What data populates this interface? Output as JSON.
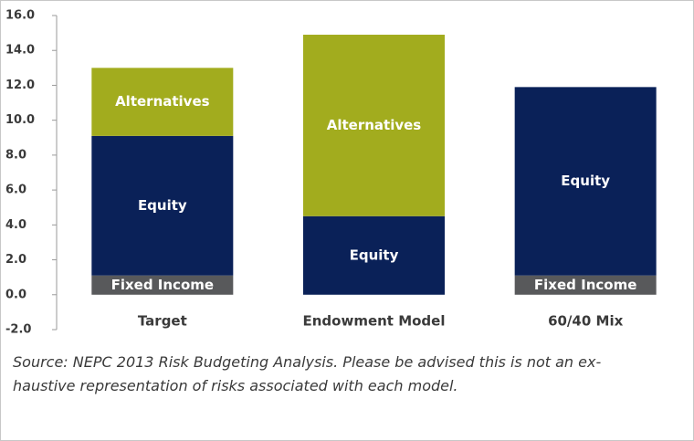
{
  "chart_data": {
    "type": "stacked_bar",
    "categories": [
      "Target",
      "Endowment Model",
      "60/40 Mix"
    ],
    "series": [
      {
        "name": "Fixed Income",
        "color": "#58595b",
        "values": [
          1.1,
          0,
          1.1
        ]
      },
      {
        "name": "Equity",
        "color": "#0a2158",
        "values": [
          8.0,
          4.5,
          10.8
        ]
      },
      {
        "name": "Alternatives",
        "color": "#a2ac1e",
        "values": [
          3.9,
          10.4,
          0
        ]
      }
    ],
    "ylim": [
      -2.0,
      16.0
    ],
    "yticks": [
      {
        "value": -2,
        "label": "-2.0"
      },
      {
        "value": 0,
        "label": "0.0"
      },
      {
        "value": 2,
        "label": "2.0"
      },
      {
        "value": 4,
        "label": "4.0"
      },
      {
        "value": 6,
        "label": "6.0"
      },
      {
        "value": 8,
        "label": "8.0"
      },
      {
        "value": 10,
        "label": "10.0"
      },
      {
        "value": 12,
        "label": "12.0"
      },
      {
        "value": 14,
        "label": "14.0"
      },
      {
        "value": 16,
        "label": "16.0"
      }
    ],
    "source": [
      "Source: NEPC 2013 Risk Budgeting Analysis. Please be advised this is not an ex-",
      "haustive representation of risks associated with each model."
    ]
  }
}
